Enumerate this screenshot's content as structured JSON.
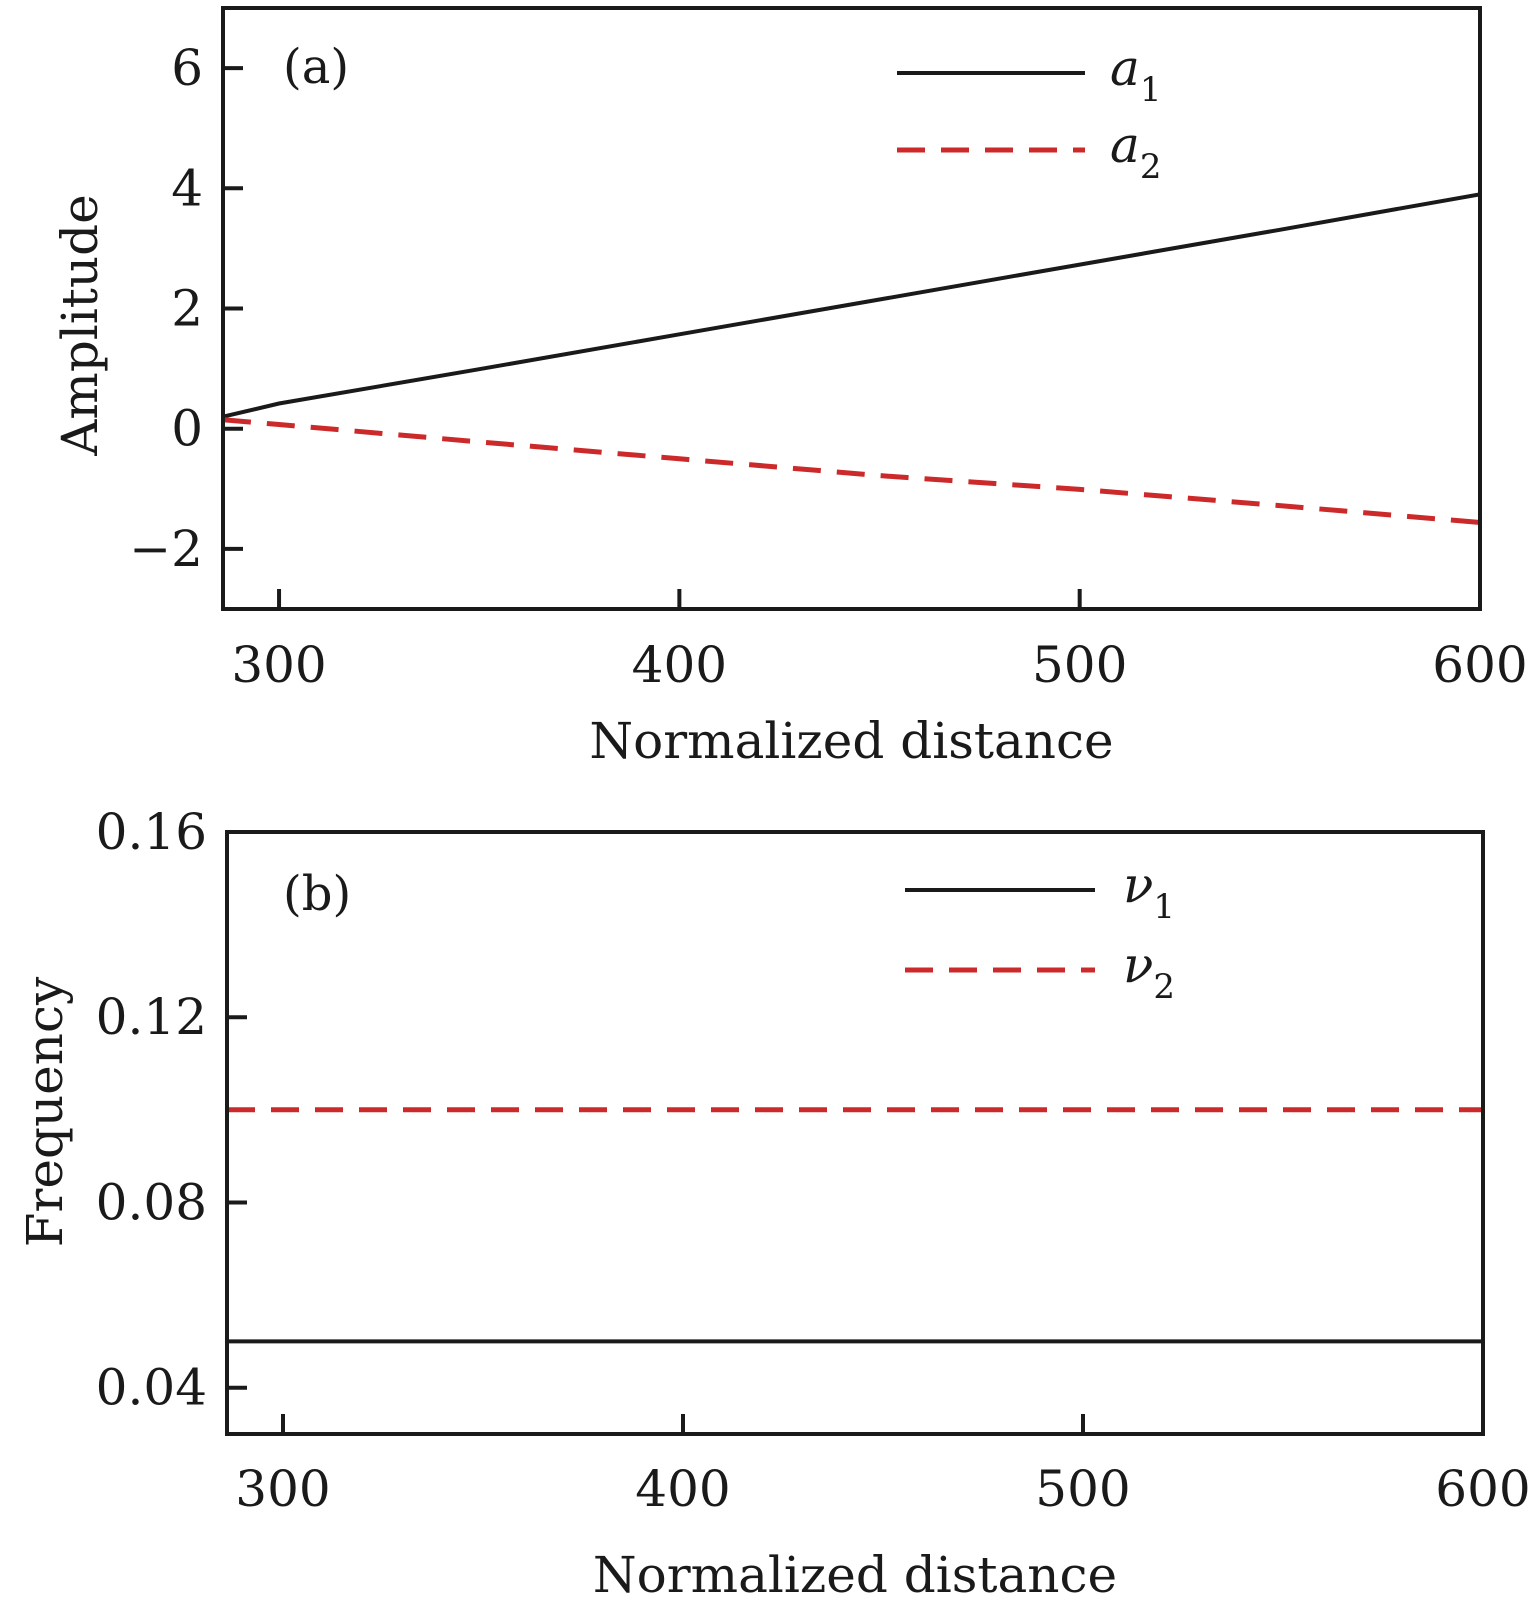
{
  "chart_data": [
    {
      "type": "line",
      "panel_label": "(a)",
      "title": "",
      "xlabel": "Normalized distance",
      "ylabel": "Amplitude",
      "xlim": [
        286,
        600
      ],
      "ylim": [
        -3,
        7
      ],
      "xticks": [
        300,
        400,
        500,
        600
      ],
      "yticks": [
        -2,
        0,
        2,
        4,
        6
      ],
      "ytick_labels": [
        "−2",
        "0",
        "2",
        "4",
        "6"
      ],
      "grid": false,
      "legend_position": "top-right",
      "series": [
        {
          "name_symbol": "a",
          "name_sub": "1",
          "style": "solid",
          "color": "#1a1a1a",
          "x": [
            286,
            300,
            350,
            400,
            450,
            500,
            550,
            600
          ],
          "y": [
            0.2,
            0.42,
            0.99,
            1.57,
            2.15,
            2.73,
            3.31,
            3.9
          ]
        },
        {
          "name_symbol": "a",
          "name_sub": "2",
          "style": "dashed",
          "color": "#cc2a2a",
          "x": [
            286,
            300,
            350,
            400,
            450,
            500,
            550,
            600
          ],
          "y": [
            0.15,
            0.07,
            -0.22,
            -0.5,
            -0.78,
            -1.01,
            -1.28,
            -1.56
          ]
        }
      ]
    },
    {
      "type": "line",
      "panel_label": "(b)",
      "title": "",
      "xlabel": "Normalized distance",
      "ylabel": "Frequency",
      "xlim": [
        286,
        600
      ],
      "ylim": [
        0.03,
        0.16
      ],
      "xticks": [
        300,
        400,
        500,
        600
      ],
      "yticks": [
        0.04,
        0.08,
        0.12,
        0.16
      ],
      "ytick_labels": [
        "0.04",
        "0.08",
        "0.12",
        "0.16"
      ],
      "grid": false,
      "legend_position": "top-right",
      "series": [
        {
          "name_symbol": "ν",
          "name_sub": "1",
          "style": "solid",
          "color": "#1a1a1a",
          "x": [
            286,
            600
          ],
          "y": [
            0.05,
            0.05
          ]
        },
        {
          "name_symbol": "ν",
          "name_sub": "2",
          "style": "dashed",
          "color": "#cc2a2a",
          "x": [
            286,
            600
          ],
          "y": [
            0.1,
            0.1
          ]
        }
      ]
    }
  ]
}
